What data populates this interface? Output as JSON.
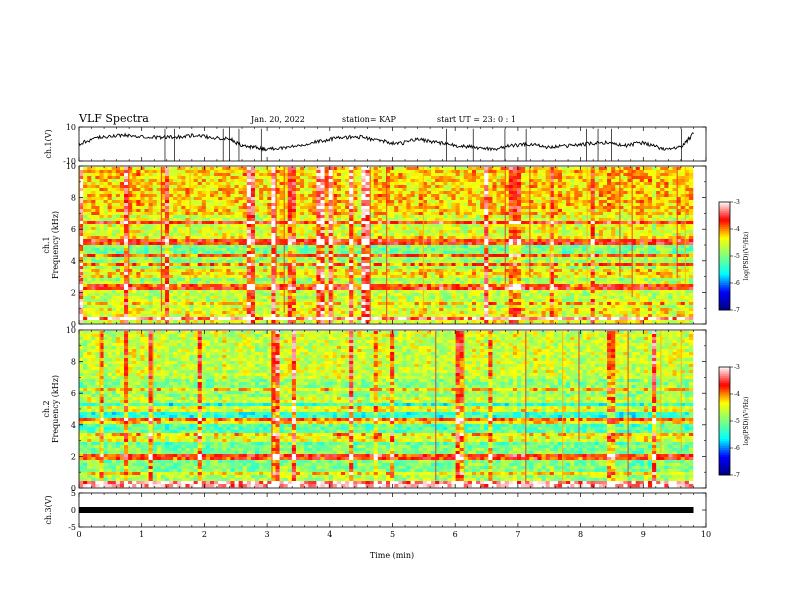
{
  "header": {
    "title": "VLF Spectra",
    "date": "Jan. 20, 2022",
    "station": "station= KAP",
    "start": "start UT =  23: 0  : 1"
  },
  "axes": {
    "ch1_wave_label": "ch.1(V)",
    "ch1_spec_label": "ch.1",
    "freq_label": "Frequency (kHz)",
    "ch2_spec_label": "ch.2",
    "ch3_wave_label": "ch.3(V)",
    "time_label": "Time (min)",
    "colorbar_label": "log(PSD)(V²/Hz)"
  },
  "chart_data": [
    {
      "panel": "ch1-waveform",
      "type": "line",
      "ylabel": "ch.1(V)",
      "ylim": [
        -10,
        10
      ],
      "yticks": [
        "10",
        "-10"
      ],
      "xlim": [
        0,
        10
      ],
      "x": [
        0,
        0.3,
        0.6,
        0.9,
        1.2,
        1.5,
        1.8,
        2.1,
        2.4,
        2.6,
        2.8,
        3.0,
        3.3,
        3.6,
        3.9,
        4.2,
        4.5,
        4.8,
        5.1,
        5.4,
        5.7,
        6.0,
        6.3,
        6.6,
        6.9,
        7.2,
        7.5,
        7.8,
        8.1,
        8.4,
        8.7,
        9.0,
        9.3,
        9.6,
        9.8
      ],
      "values": [
        0,
        4,
        5,
        5,
        4,
        4,
        5,
        4,
        3,
        -1,
        -2,
        -3,
        -2,
        0,
        2,
        4,
        4,
        2,
        0,
        3,
        1,
        -1,
        -2,
        -3,
        -1,
        0,
        -2,
        -1,
        0,
        1,
        -1,
        1,
        -3,
        -2,
        6
      ]
    },
    {
      "panel": "ch1-spectrogram",
      "type": "heatmap",
      "ylabel": "Frequency (kHz)",
      "ylim": [
        0,
        10
      ],
      "xlim": [
        0,
        10
      ],
      "yticks": [
        "0",
        "2",
        "4",
        "6",
        "8",
        "10"
      ],
      "bands_khz": [
        0.3,
        1.3,
        2.2,
        2.4,
        3.0,
        3.3,
        3.8,
        4.3,
        5.2,
        5.4,
        6.4
      ],
      "band_psd_log10": [
        -3.2,
        -4.2,
        -3.6,
        -3.8,
        -4.4,
        -4.3,
        -4.0,
        -3.9,
        -3.7,
        -4.3,
        -3.6
      ]
    },
    {
      "panel": "ch2-spectrogram",
      "type": "heatmap",
      "ylabel": "Frequency (kHz)",
      "ylim": [
        0,
        10
      ],
      "xlim": [
        0,
        10
      ],
      "yticks": [
        "0",
        "2",
        "4",
        "6",
        "8",
        "10"
      ],
      "bands_khz": [
        0.2,
        0.9,
        1.8,
        2.0,
        3.1,
        3.4,
        4.1,
        4.3,
        5.0,
        5.6,
        6.3
      ],
      "band_psd_log10": [
        -3.2,
        -4.3,
        -3.8,
        -3.7,
        -4.5,
        -4.2,
        -4.4,
        -3.9,
        -4.5,
        -4.6,
        -4.3
      ]
    },
    {
      "panel": "ch3-waveform",
      "type": "line",
      "ylabel": "ch.3(V)",
      "ylim": [
        -5,
        5
      ],
      "yticks": [
        "5",
        "0",
        "-5"
      ],
      "xlim": [
        0,
        10
      ],
      "xlabel": "Time (min)",
      "xticks": [
        "0",
        "1",
        "2",
        "3",
        "4",
        "5",
        "6",
        "7",
        "8",
        "9",
        "10"
      ],
      "x": [
        0,
        9.8
      ],
      "values": [
        0,
        0
      ]
    },
    {
      "panel": "colorbar",
      "type": "colorbar",
      "label": "log(PSD)(V²/Hz)",
      "range": [
        -7,
        -3
      ],
      "ticks": [
        "-3",
        "-4",
        "-5",
        "-6",
        "-7"
      ],
      "colors": [
        "#00007f",
        "#0000ff",
        "#00ffff",
        "#7fff7f",
        "#ffff00",
        "#ff0000",
        "#ffffff"
      ]
    }
  ]
}
